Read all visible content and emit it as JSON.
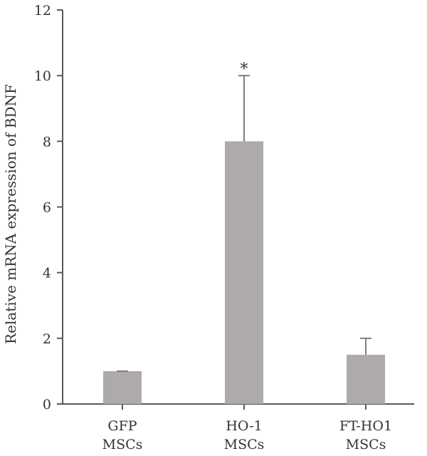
{
  "chart_data": {
    "type": "bar",
    "title": "",
    "xlabel": "",
    "ylabel": "Relative mRNA expression of BDNF",
    "ylim": [
      0,
      12
    ],
    "yticks": [
      0,
      2,
      4,
      6,
      8,
      10,
      12
    ],
    "grid": false,
    "categories": [
      [
        "GFP",
        "MSCs"
      ],
      [
        "HO-1",
        "MSCs"
      ],
      [
        "FT-HO1",
        "MSCs"
      ]
    ],
    "values": [
      1.0,
      8.0,
      1.5
    ],
    "error_upper": [
      0.0,
      2.0,
      0.5
    ],
    "annotations": [
      "",
      "*",
      ""
    ],
    "colors": {
      "bar": "#aeaaaa",
      "axis": "#595959",
      "error": "#7f7f7f"
    }
  }
}
